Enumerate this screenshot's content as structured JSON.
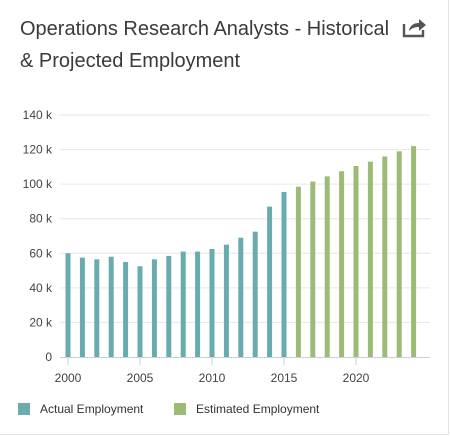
{
  "title": "Operations Research Analysts - Historical & Projected Employment",
  "icons": {
    "share": "share-icon"
  },
  "colors": {
    "actual": "#6aabb0",
    "estimated": "#9bbb77",
    "grid": "#e6e6e6",
    "axis": "#c8d0dc"
  },
  "chart_data": {
    "type": "bar",
    "title": "Operations Research Analysts - Historical & Projected Employment",
    "xlabel": "",
    "ylabel": "",
    "ylim": [
      0,
      140000
    ],
    "yticks": [
      0,
      20000,
      40000,
      60000,
      80000,
      100000,
      120000,
      140000
    ],
    "ytick_labels": [
      "0",
      "20 k",
      "40 k",
      "60 k",
      "80 k",
      "100 k",
      "120 k",
      "140 k"
    ],
    "xlim": [
      2000,
      2024
    ],
    "xticks": [
      2000,
      2005,
      2010,
      2015,
      2020
    ],
    "xtick_labels": [
      "2000",
      "2005",
      "2010",
      "2015",
      "2020"
    ],
    "grid": true,
    "legend_position": "bottom-left",
    "series": [
      {
        "name": "Actual Employment",
        "color": "#6aabb0",
        "x": [
          2000,
          2001,
          2002,
          2003,
          2004,
          2005,
          2006,
          2007,
          2008,
          2009,
          2010,
          2011,
          2012,
          2013,
          2014,
          2015
        ],
        "values": [
          60000,
          57500,
          56500,
          58000,
          55000,
          52500,
          56500,
          58500,
          61000,
          61000,
          62500,
          65000,
          69000,
          72500,
          87000,
          95500
        ]
      },
      {
        "name": "Estimated Employment",
        "color": "#9bbb77",
        "x": [
          2016,
          2017,
          2018,
          2019,
          2020,
          2021,
          2022,
          2023,
          2024
        ],
        "values": [
          98500,
          101500,
          104500,
          107500,
          110500,
          113000,
          116000,
          119000,
          122000
        ]
      }
    ]
  }
}
